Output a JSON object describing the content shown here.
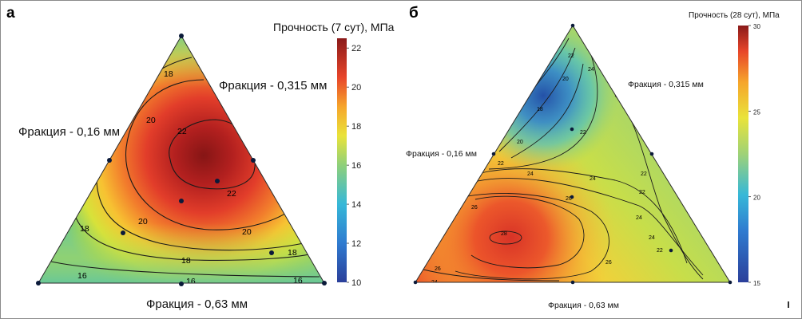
{
  "chart_data": [
    {
      "type": "heatmap",
      "panel_label": "а",
      "colorbar_title": "Прочность (7 сут), МПа",
      "colorbar_range": [
        10,
        22.5
      ],
      "colorbar_ticks": [
        10,
        12,
        14,
        16,
        18,
        20,
        22
      ],
      "component_labels": [
        "Фракция - 0,315 мм",
        "Фракция - 0,16 мм",
        "Фракция - 0,63 мм"
      ],
      "contour_labels": [
        "18",
        "20",
        "22",
        "22",
        "20",
        "20",
        "18",
        "18",
        "18",
        "16",
        "16",
        "16"
      ],
      "design_points": 9,
      "max_region": "center-right, ~22.5 МПа"
    },
    {
      "type": "heatmap",
      "panel_label": "б",
      "colorbar_title": "Прочность (28 сут), МПа",
      "colorbar_range": [
        15,
        30
      ],
      "colorbar_ticks": [
        15,
        20,
        25,
        30
      ],
      "component_labels": [
        "Фракция - 0,315 мм",
        "Фракция - 0,16 мм",
        "Фракция - 0,63 мм"
      ],
      "contour_labels": [
        "22",
        "24",
        "20",
        "18",
        "20",
        "22",
        "22",
        "24",
        "24",
        "22",
        "22",
        "26",
        "28",
        "26",
        "26",
        "24",
        "26",
        "24",
        "24",
        "22"
      ],
      "design_points": 9,
      "max_region": "lower-left, ~28 МПа"
    }
  ]
}
